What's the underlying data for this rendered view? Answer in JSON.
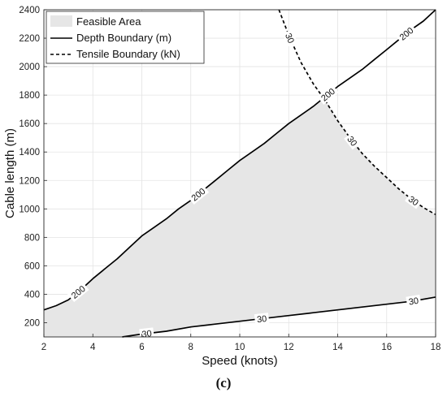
{
  "panel_label": "(c)",
  "chart_data": {
    "type": "line",
    "title": "",
    "xlabel": "Speed (knots)",
    "ylabel": "Cable length (m)",
    "xlim": [
      2,
      18
    ],
    "ylim": [
      100,
      2400
    ],
    "xticks": [
      2,
      4,
      6,
      8,
      10,
      12,
      14,
      16,
      18
    ],
    "yticks": [
      200,
      400,
      600,
      800,
      1000,
      1200,
      1400,
      1600,
      1800,
      2000,
      2200,
      2400
    ],
    "grid": true,
    "legend_position": "top-left",
    "legend": [
      "Feasible Area",
      "Depth Boundary (m)",
      "Tensile Boundary (kN)"
    ],
    "series": [
      {
        "name": "Depth Boundary (m)",
        "style": "solid",
        "contour_level": "200",
        "x": [
          2,
          2.5,
          3,
          3.5,
          4,
          4.5,
          5,
          5.5,
          6,
          6.5,
          7,
          7.5,
          8,
          8.5,
          9,
          9.5,
          10,
          10.5,
          11,
          11.5,
          12,
          12.5,
          13,
          13.5,
          14,
          14.5,
          15,
          15.5,
          16,
          16.5,
          17,
          17.5,
          18
        ],
        "y": [
          290,
          320,
          360,
          430,
          510,
          580,
          650,
          730,
          810,
          870,
          930,
          1000,
          1060,
          1130,
          1200,
          1270,
          1340,
          1400,
          1460,
          1530,
          1600,
          1660,
          1720,
          1790,
          1860,
          1920,
          1980,
          2050,
          2120,
          2190,
          2260,
          2320,
          2400
        ]
      },
      {
        "name": "Depth Boundary (m)",
        "style": "solid",
        "contour_level": "30",
        "x": [
          5.2,
          6,
          7,
          8,
          9,
          10,
          11,
          12,
          13,
          14,
          15,
          16,
          17,
          18
        ],
        "y": [
          100,
          120,
          140,
          170,
          190,
          210,
          230,
          250,
          270,
          290,
          310,
          330,
          350,
          380
        ]
      },
      {
        "name": "Tensile Boundary (kN)",
        "style": "dashed",
        "contour_level": "30",
        "x": [
          11.6,
          12,
          12.5,
          13,
          13.5,
          14,
          14.5,
          15,
          15.5,
          16,
          16.5,
          17,
          17.5,
          18
        ],
        "y": [
          2400,
          2220,
          2030,
          1880,
          1760,
          1620,
          1500,
          1390,
          1300,
          1220,
          1140,
          1070,
          1010,
          960
        ]
      }
    ],
    "feasible_area": {
      "name": "Feasible Area",
      "lower_boundary": "Depth Boundary 30 contour",
      "upper_boundary": "Depth Boundary 200 contour / Tensile Boundary 30 contour"
    },
    "contour_labels": [
      {
        "text": "200",
        "series": 0,
        "x": 3.4
      },
      {
        "text": "200",
        "series": 0,
        "x": 8.3
      },
      {
        "text": "200",
        "series": 0,
        "x": 13.6
      },
      {
        "text": "200",
        "series": 0,
        "x": 16.8
      },
      {
        "text": "30",
        "series": 1,
        "x": 6.2
      },
      {
        "text": "30",
        "series": 1,
        "x": 10.9
      },
      {
        "text": "30",
        "series": 1,
        "x": 17.1
      },
      {
        "text": "30",
        "series": 2,
        "x": 12.05
      },
      {
        "text": "30",
        "series": 2,
        "x": 14.6
      },
      {
        "text": "30",
        "series": 2,
        "x": 17.1
      }
    ],
    "colors": {
      "feasible_fill": "#e6e6e6",
      "grid": "#e3e3e3",
      "line": "#000000",
      "axis": "#262626"
    }
  }
}
